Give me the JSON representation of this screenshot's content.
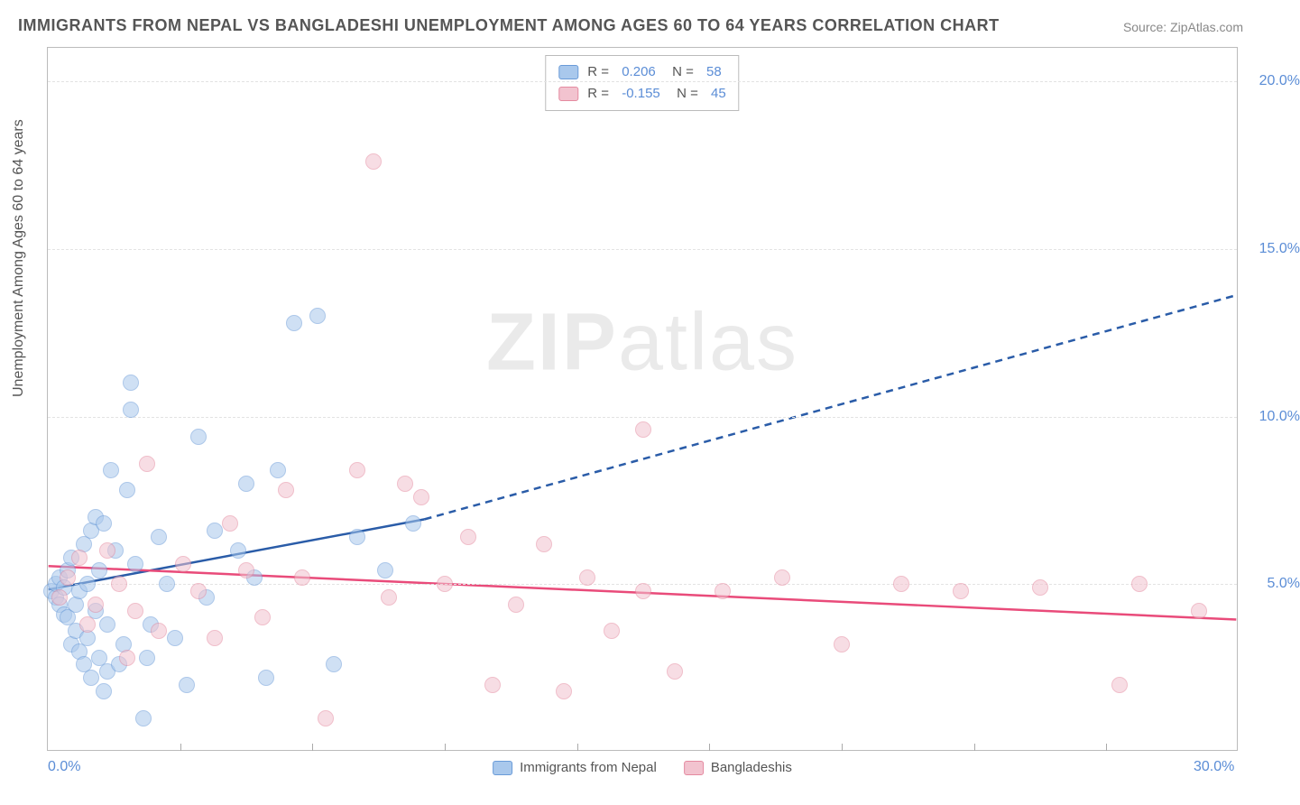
{
  "title": "IMMIGRANTS FROM NEPAL VS BANGLADESHI UNEMPLOYMENT AMONG AGES 60 TO 64 YEARS CORRELATION CHART",
  "source": "Source: ZipAtlas.com",
  "ylabel": "Unemployment Among Ages 60 to 64 years",
  "watermark_bold": "ZIP",
  "watermark_rest": "atlas",
  "chart": {
    "type": "scatter",
    "background_color": "#ffffff",
    "grid_color": "#e3e3e3",
    "border_color": "#bbbbbb",
    "xlim": [
      0,
      30
    ],
    "ylim": [
      0,
      21
    ],
    "x_ticks_minor": [
      3.33,
      6.67,
      10,
      13.33,
      16.67,
      20,
      23.33,
      26.67
    ],
    "x_tick_labels": [
      {
        "x": 0,
        "label": "0.0%"
      },
      {
        "x": 30,
        "label": "30.0%"
      }
    ],
    "y_tick_labels": [
      {
        "y": 5,
        "label": "5.0%"
      },
      {
        "y": 10,
        "label": "10.0%"
      },
      {
        "y": 15,
        "label": "15.0%"
      },
      {
        "y": 20,
        "label": "20.0%"
      }
    ],
    "marker_radius": 9,
    "marker_opacity": 0.55,
    "series": [
      {
        "name": "Immigrants from Nepal",
        "fill_color": "#a9c8ec",
        "stroke_color": "#6a9bd8",
        "line_color": "#2a5ca8",
        "R": "0.206",
        "N": "58",
        "trend": {
          "x1": 0,
          "y1": 4.8,
          "x2": 9.5,
          "y2": 6.9,
          "dash_x2": 30,
          "dash_y2": 13.6
        },
        "points": [
          [
            0.1,
            4.8
          ],
          [
            0.2,
            4.6
          ],
          [
            0.2,
            5.0
          ],
          [
            0.3,
            5.2
          ],
          [
            0.3,
            4.4
          ],
          [
            0.4,
            4.1
          ],
          [
            0.4,
            4.9
          ],
          [
            0.5,
            5.4
          ],
          [
            0.5,
            4.0
          ],
          [
            0.6,
            5.8
          ],
          [
            0.6,
            3.2
          ],
          [
            0.7,
            3.6
          ],
          [
            0.7,
            4.4
          ],
          [
            0.8,
            4.8
          ],
          [
            0.8,
            3.0
          ],
          [
            0.9,
            2.6
          ],
          [
            0.9,
            6.2
          ],
          [
            1.0,
            5.0
          ],
          [
            1.0,
            3.4
          ],
          [
            1.1,
            2.2
          ],
          [
            1.1,
            6.6
          ],
          [
            1.2,
            4.2
          ],
          [
            1.2,
            7.0
          ],
          [
            1.3,
            2.8
          ],
          [
            1.3,
            5.4
          ],
          [
            1.4,
            1.8
          ],
          [
            1.4,
            6.8
          ],
          [
            1.5,
            3.8
          ],
          [
            1.5,
            2.4
          ],
          [
            1.6,
            8.4
          ],
          [
            1.7,
            6.0
          ],
          [
            1.8,
            2.6
          ],
          [
            1.9,
            3.2
          ],
          [
            2.0,
            7.8
          ],
          [
            2.1,
            10.2
          ],
          [
            2.1,
            11.0
          ],
          [
            2.2,
            5.6
          ],
          [
            2.4,
            1.0
          ],
          [
            2.5,
            2.8
          ],
          [
            2.6,
            3.8
          ],
          [
            2.8,
            6.4
          ],
          [
            3.0,
            5.0
          ],
          [
            3.2,
            3.4
          ],
          [
            3.5,
            2.0
          ],
          [
            3.8,
            9.4
          ],
          [
            4.0,
            4.6
          ],
          [
            4.2,
            6.6
          ],
          [
            4.8,
            6.0
          ],
          [
            5.0,
            8.0
          ],
          [
            5.2,
            5.2
          ],
          [
            5.5,
            2.2
          ],
          [
            5.8,
            8.4
          ],
          [
            6.2,
            12.8
          ],
          [
            6.8,
            13.0
          ],
          [
            7.2,
            2.6
          ],
          [
            7.8,
            6.4
          ],
          [
            8.5,
            5.4
          ],
          [
            9.2,
            6.8
          ]
        ]
      },
      {
        "name": "Bangladeshis",
        "fill_color": "#f2c3cf",
        "stroke_color": "#e48aa0",
        "line_color": "#e94b7a",
        "R": "-0.155",
        "N": "45",
        "trend": {
          "x1": 0,
          "y1": 5.5,
          "x2": 30,
          "y2": 3.9
        },
        "points": [
          [
            0.3,
            4.6
          ],
          [
            0.5,
            5.2
          ],
          [
            0.8,
            5.8
          ],
          [
            1.0,
            3.8
          ],
          [
            1.2,
            4.4
          ],
          [
            1.5,
            6.0
          ],
          [
            1.8,
            5.0
          ],
          [
            2.0,
            2.8
          ],
          [
            2.2,
            4.2
          ],
          [
            2.5,
            8.6
          ],
          [
            2.8,
            3.6
          ],
          [
            3.4,
            5.6
          ],
          [
            3.8,
            4.8
          ],
          [
            4.2,
            3.4
          ],
          [
            4.6,
            6.8
          ],
          [
            5.0,
            5.4
          ],
          [
            5.4,
            4.0
          ],
          [
            6.0,
            7.8
          ],
          [
            6.4,
            5.2
          ],
          [
            7.0,
            1.0
          ],
          [
            7.8,
            8.4
          ],
          [
            8.2,
            17.6
          ],
          [
            8.6,
            4.6
          ],
          [
            9.0,
            8.0
          ],
          [
            9.4,
            7.6
          ],
          [
            10.0,
            5.0
          ],
          [
            10.6,
            6.4
          ],
          [
            11.2,
            2.0
          ],
          [
            11.8,
            4.4
          ],
          [
            12.5,
            6.2
          ],
          [
            13.0,
            1.8
          ],
          [
            13.6,
            5.2
          ],
          [
            14.2,
            3.6
          ],
          [
            15.0,
            4.8
          ],
          [
            15.0,
            9.6
          ],
          [
            15.8,
            2.4
          ],
          [
            17.0,
            4.8
          ],
          [
            18.5,
            5.2
          ],
          [
            20.0,
            3.2
          ],
          [
            21.5,
            5.0
          ],
          [
            23.0,
            4.8
          ],
          [
            25.0,
            4.9
          ],
          [
            27.0,
            2.0
          ],
          [
            27.5,
            5.0
          ],
          [
            29.0,
            4.2
          ]
        ]
      }
    ]
  }
}
